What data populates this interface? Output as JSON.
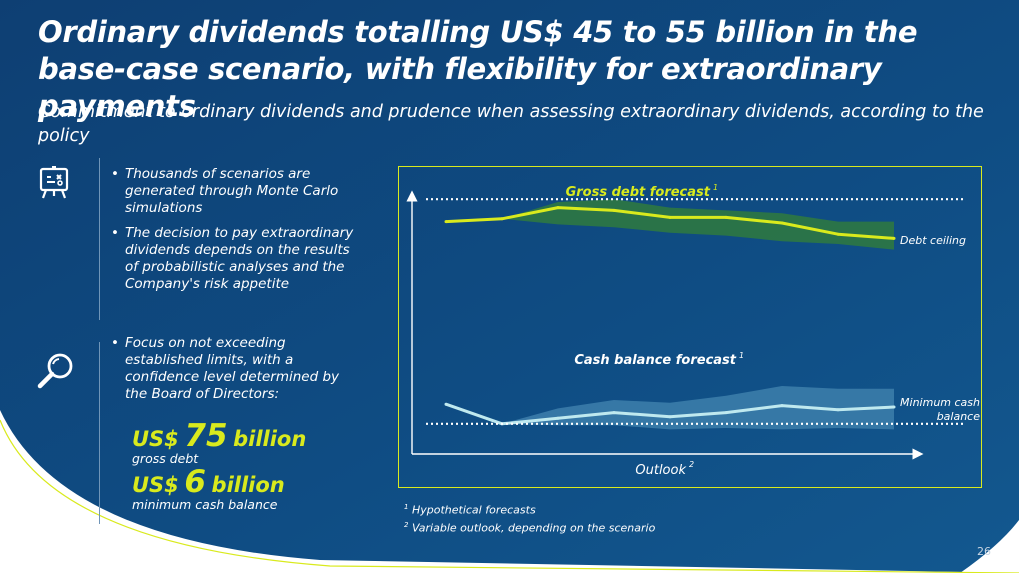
{
  "title": "Ordinary dividends totalling US$ 45 to 55 billion in the base-case scenario, with flexibility for extraordinary payments",
  "subtitle": "Commitment to ordinary dividends and prudence when assessing extraordinary dividends, according to the policy",
  "bullets_group1": [
    "Thousands of scenarios are generated through Monte Carlo simulations",
    "The decision to pay extraordinary dividends depends on the results of probabilistic analyses and the Company's risk appetite"
  ],
  "bullets_group2": [
    "Focus on not exceeding established limits, with a confidence level determined by the Board of Directors:"
  ],
  "highlights": {
    "gross_debt": {
      "prefix": "US$",
      "value": "75",
      "suffix": "billion",
      "label": "gross debt"
    },
    "min_cash": {
      "prefix": "US$",
      "value": "6",
      "suffix": "billion",
      "label": "minimum cash balance"
    }
  },
  "icons": {
    "simulation": "presentation-board-icon",
    "analysis": "magnifier-icon"
  },
  "colors": {
    "background": "#0f4d84",
    "accent": "#d9ea1d",
    "debt_band": "#2f7a3e",
    "cash_band": "#3d7fab",
    "cash_line": "#bfe9ef"
  },
  "footnotes": [
    {
      "mark": "1",
      "text": "Hypothetical forecasts"
    },
    {
      "mark": "2",
      "text": "Variable outlook, depending on the scenario"
    }
  ],
  "page_number": "26",
  "chart_data": {
    "type": "line",
    "title": "",
    "xlabel": "Outlook",
    "xlabel_footnote": "2",
    "ylabel": "",
    "x": [
      0,
      1,
      2,
      3,
      4,
      5,
      6,
      7,
      8
    ],
    "ylim": [
      0,
      100
    ],
    "xlim": [
      0,
      8.8
    ],
    "series": [
      {
        "name": "Gross debt forecast",
        "footnote": "1",
        "values": [
          76,
          78,
          86,
          84,
          79,
          79,
          75,
          67,
          64
        ],
        "band_low": [
          76,
          78,
          74,
          72,
          68,
          66,
          62,
          60,
          56
        ],
        "band_high": [
          76,
          78,
          90,
          92,
          86,
          84,
          82,
          76,
          76
        ]
      },
      {
        "name": "Cash balance forecast",
        "footnote": "1",
        "values": [
          17,
          3,
          7,
          11,
          8,
          11,
          16,
          13,
          15
        ],
        "band_low": [
          17,
          3,
          2,
          2,
          -1,
          0,
          -1,
          0,
          -1
        ],
        "band_high": [
          17,
          3,
          14,
          20,
          18,
          23,
          30,
          28,
          28
        ]
      }
    ],
    "reference_lines": [
      {
        "name": "Debt ceiling",
        "value": 92
      },
      {
        "name": "Minimum cash balance",
        "value": 3
      }
    ]
  }
}
